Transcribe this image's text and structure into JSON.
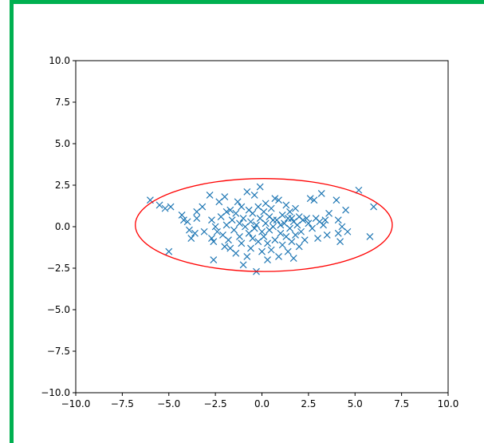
{
  "frame": {
    "border_color": "#00b050"
  },
  "chart_data": {
    "type": "scatter",
    "title": "",
    "xlabel": "",
    "ylabel": "",
    "xlim": [
      -10.0,
      10.0
    ],
    "ylim": [
      -10.0,
      10.0
    ],
    "grid": false,
    "xticks": [
      -10.0,
      -7.5,
      -5.0,
      -2.5,
      0.0,
      2.5,
      5.0,
      7.5,
      10.0
    ],
    "yticks": [
      -10.0,
      -7.5,
      -5.0,
      -2.5,
      0.0,
      2.5,
      5.0,
      7.5,
      10.0
    ],
    "xtick_labels": [
      "−10.0",
      "−7.5",
      "−5.0",
      "−2.5",
      "0.0",
      "2.5",
      "5.0",
      "7.5",
      "10.0"
    ],
    "ytick_labels": [
      "−10.0",
      "−7.5",
      "−5.0",
      "−2.5",
      "0.0",
      "2.5",
      "5.0",
      "7.5",
      "10.0"
    ],
    "marker": "x",
    "marker_color": "#1f77b4",
    "ellipse": {
      "center": [
        0.1,
        0.1
      ],
      "width": 13.8,
      "height": 5.6,
      "angle": 0,
      "color": "#ff0000"
    },
    "points": [
      [
        -6.0,
        1.6
      ],
      [
        -5.5,
        1.3
      ],
      [
        -5.2,
        1.1
      ],
      [
        -4.9,
        1.2
      ],
      [
        -5.0,
        -1.5
      ],
      [
        -4.3,
        0.7
      ],
      [
        -4.2,
        0.4
      ],
      [
        -4.0,
        0.3
      ],
      [
        -3.8,
        -0.7
      ],
      [
        -3.9,
        -0.2
      ],
      [
        -3.5,
        0.9
      ],
      [
        -3.5,
        0.5
      ],
      [
        -3.2,
        1.2
      ],
      [
        -3.1,
        -0.3
      ],
      [
        -2.8,
        1.9
      ],
      [
        -2.7,
        0.4
      ],
      [
        -2.7,
        -0.7
      ],
      [
        -2.6,
        -0.9
      ],
      [
        -2.6,
        -2.0
      ],
      [
        -2.5,
        0.0
      ],
      [
        -2.3,
        1.5
      ],
      [
        -2.2,
        0.6
      ],
      [
        -2.1,
        -0.5
      ],
      [
        -2.0,
        1.8
      ],
      [
        -2.0,
        -1.2
      ],
      [
        -1.9,
        0.1
      ],
      [
        -1.8,
        -0.8
      ],
      [
        -1.7,
        -1.3
      ],
      [
        -1.7,
        1.0
      ],
      [
        -1.6,
        0.4
      ],
      [
        -1.5,
        -0.2
      ],
      [
        -1.4,
        -1.6
      ],
      [
        -1.4,
        0.8
      ],
      [
        -1.3,
        1.5
      ],
      [
        -1.2,
        -0.6
      ],
      [
        -1.2,
        0.2
      ],
      [
        -1.1,
        -1.0
      ],
      [
        -1.0,
        0.5
      ],
      [
        -1.0,
        -2.3
      ],
      [
        -0.9,
        0.0
      ],
      [
        -0.8,
        2.1
      ],
      [
        -0.8,
        -1.8
      ],
      [
        -0.7,
        1.0
      ],
      [
        -0.7,
        -0.4
      ],
      [
        -0.6,
        0.3
      ],
      [
        -0.6,
        -1.3
      ],
      [
        -0.5,
        0.8
      ],
      [
        -0.5,
        -0.7
      ],
      [
        -0.4,
        1.9
      ],
      [
        -0.3,
        0.1
      ],
      [
        -0.3,
        -2.7
      ],
      [
        -0.2,
        1.2
      ],
      [
        -0.2,
        -0.9
      ],
      [
        -0.1,
        2.4
      ],
      [
        -0.1,
        0.5
      ],
      [
        0.0,
        -0.3
      ],
      [
        0.0,
        -1.5
      ],
      [
        0.1,
        0.9
      ],
      [
        0.1,
        -0.6
      ],
      [
        0.2,
        0.2
      ],
      [
        0.2,
        1.4
      ],
      [
        0.3,
        -1.0
      ],
      [
        0.3,
        -2.0
      ],
      [
        0.4,
        0.6
      ],
      [
        0.4,
        -0.2
      ],
      [
        0.5,
        1.1
      ],
      [
        0.5,
        -1.4
      ],
      [
        0.6,
        0.0
      ],
      [
        0.7,
        1.7
      ],
      [
        0.7,
        -0.8
      ],
      [
        0.8,
        0.4
      ],
      [
        0.9,
        -1.8
      ],
      [
        0.9,
        1.6
      ],
      [
        1.0,
        -0.4
      ],
      [
        1.1,
        0.7
      ],
      [
        1.1,
        -1.1
      ],
      [
        1.2,
        0.2
      ],
      [
        1.3,
        1.3
      ],
      [
        1.3,
        -0.6
      ],
      [
        1.4,
        0.5
      ],
      [
        1.4,
        -1.5
      ],
      [
        1.5,
        0.9
      ],
      [
        1.5,
        -0.1
      ],
      [
        1.6,
        -0.9
      ],
      [
        1.7,
        0.3
      ],
      [
        1.7,
        -1.9
      ],
      [
        1.8,
        1.1
      ],
      [
        1.8,
        -0.5
      ],
      [
        1.9,
        0.1
      ],
      [
        2.0,
        -1.2
      ],
      [
        2.0,
        0.6
      ],
      [
        2.1,
        -0.3
      ],
      [
        2.2,
        0.4
      ],
      [
        2.3,
        -0.8
      ],
      [
        2.5,
        0.2
      ],
      [
        2.6,
        1.7
      ],
      [
        2.7,
        -0.1
      ],
      [
        2.8,
        1.6
      ],
      [
        2.9,
        0.5
      ],
      [
        3.0,
        -0.7
      ],
      [
        3.1,
        0.3
      ],
      [
        3.2,
        2.0
      ],
      [
        3.3,
        0.1
      ],
      [
        3.5,
        -0.5
      ],
      [
        3.6,
        0.8
      ],
      [
        4.0,
        1.6
      ],
      [
        4.1,
        0.4
      ],
      [
        4.1,
        -0.4
      ],
      [
        4.2,
        -0.9
      ],
      [
        4.3,
        0.0
      ],
      [
        4.5,
        1.0
      ],
      [
        4.6,
        -0.3
      ],
      [
        5.2,
        2.2
      ],
      [
        5.8,
        -0.6
      ],
      [
        6.0,
        1.2
      ],
      [
        -3.6,
        -0.4
      ],
      [
        -2.4,
        -0.3
      ],
      [
        -1.9,
        0.9
      ],
      [
        -1.1,
        1.2
      ],
      [
        -0.4,
        -0.1
      ],
      [
        0.6,
        0.4
      ],
      [
        1.0,
        0.1
      ],
      [
        1.6,
        0.5
      ],
      [
        2.4,
        0.5
      ],
      [
        3.4,
        0.4
      ]
    ]
  }
}
